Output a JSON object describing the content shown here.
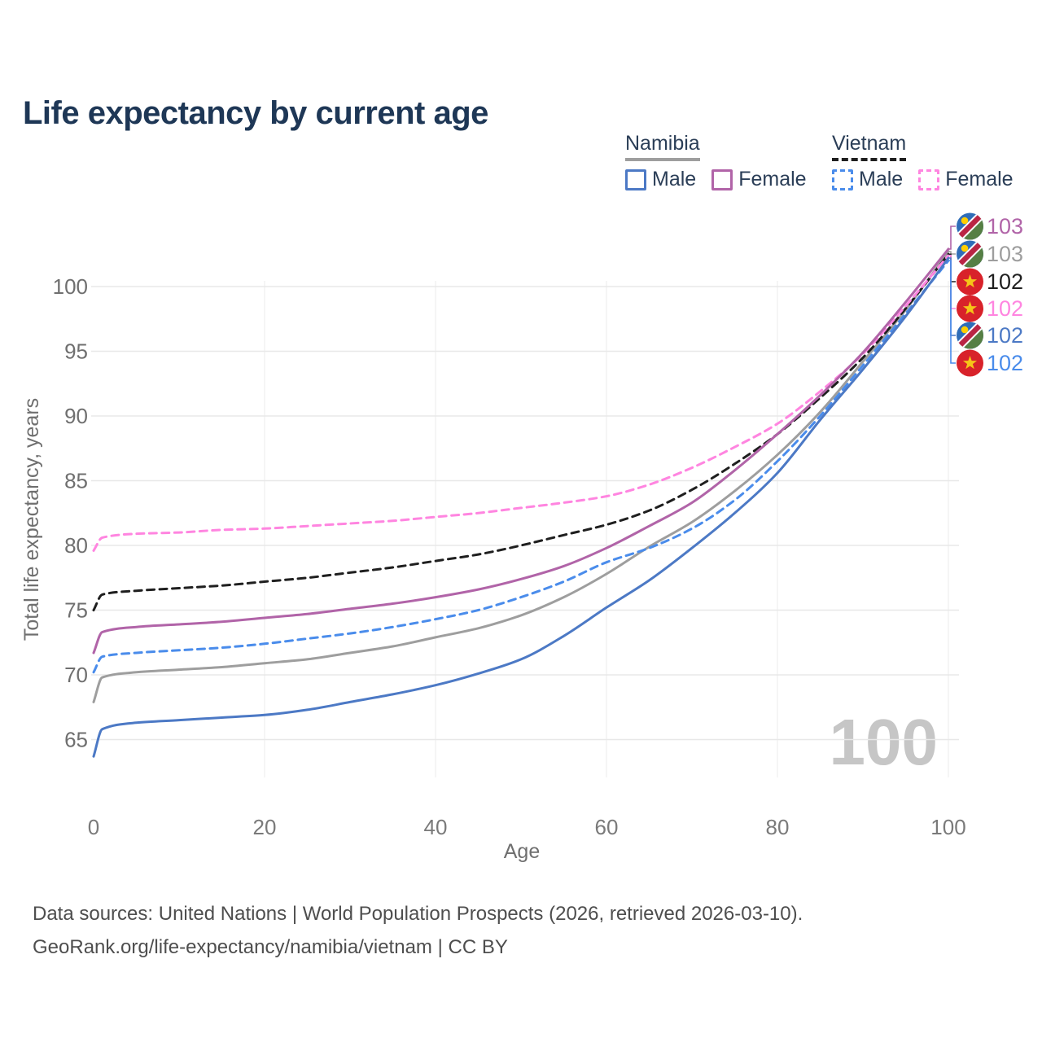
{
  "title": "Life expectancy by current age",
  "watermark": "100",
  "footer": {
    "line1": "Data sources: United Nations | World Population Prospects (2026, retrieved 2026-03-10).",
    "line2": "GeoRank.org/life-expectancy/namibia/vietnam | CC BY"
  },
  "legend": {
    "groups": [
      {
        "label": "Namibia",
        "underline_style": "solid",
        "underline_color": "#9e9e9e",
        "items": [
          {
            "label": "Male",
            "swatch_color": "#4c79c5",
            "swatch_style": "solid"
          },
          {
            "label": "Female",
            "swatch_color": "#b164a8",
            "swatch_style": "solid"
          }
        ]
      },
      {
        "label": "Vietnam",
        "underline_style": "dashed",
        "underline_color": "#1f1f1f",
        "items": [
          {
            "label": "Male",
            "swatch_color": "#4a8ceb",
            "swatch_style": "dashed"
          },
          {
            "label": "Female",
            "swatch_color": "#ff85e0",
            "swatch_style": "dashed"
          }
        ]
      }
    ]
  },
  "chart_data": {
    "type": "line",
    "title": "Life expectancy by current age",
    "xlabel": "Age",
    "ylabel": "Total life expectancy, years",
    "xlim": [
      0,
      100
    ],
    "ylim": [
      63,
      103.5
    ],
    "xticks": [
      0,
      20,
      40,
      60,
      80,
      100
    ],
    "yticks": [
      65,
      70,
      75,
      80,
      85,
      90,
      95,
      100
    ],
    "grid": true,
    "legend_position": "top-right",
    "x": [
      0,
      1,
      5,
      10,
      15,
      20,
      25,
      30,
      35,
      40,
      45,
      50,
      55,
      60,
      65,
      70,
      75,
      80,
      85,
      90,
      95,
      100
    ],
    "series": [
      {
        "name": "Namibia Female",
        "country": "Namibia",
        "sex": "Female",
        "color": "#b164a8",
        "dashed": false,
        "flag": "namibia",
        "end_label": "103",
        "values": [
          71.7,
          73.3,
          73.7,
          73.9,
          74.1,
          74.4,
          74.7,
          75.1,
          75.5,
          76.0,
          76.6,
          77.4,
          78.4,
          79.8,
          81.5,
          83.3,
          85.8,
          88.6,
          91.6,
          94.9,
          98.8,
          102.9
        ]
      },
      {
        "name": "Namibia Total",
        "country": "Namibia",
        "sex": "Both",
        "color": "#9e9e9e",
        "dashed": false,
        "flag": "namibia",
        "end_label": "103",
        "values": [
          67.9,
          69.8,
          70.2,
          70.4,
          70.6,
          70.9,
          71.2,
          71.7,
          72.2,
          72.9,
          73.6,
          74.6,
          76.0,
          77.8,
          79.9,
          81.8,
          84.2,
          87.0,
          90.3,
          94.2,
          98.2,
          102.7
        ]
      },
      {
        "name": "Vietnam Total",
        "country": "Vietnam",
        "sex": "Both",
        "color": "#1f1f1f",
        "dashed": true,
        "flag": "vietnam",
        "end_label": "102",
        "values": [
          75.0,
          76.2,
          76.5,
          76.7,
          76.9,
          77.2,
          77.5,
          77.9,
          78.3,
          78.8,
          79.3,
          80.0,
          80.8,
          81.6,
          82.7,
          84.3,
          86.3,
          88.6,
          91.4,
          94.5,
          98.3,
          102.5
        ]
      },
      {
        "name": "Vietnam Female",
        "country": "Vietnam",
        "sex": "Female",
        "color": "#ff85e0",
        "dashed": true,
        "flag": "vietnam",
        "end_label": "102",
        "values": [
          79.6,
          80.6,
          80.9,
          81.0,
          81.2,
          81.3,
          81.5,
          81.7,
          81.9,
          82.2,
          82.5,
          82.9,
          83.3,
          83.8,
          84.7,
          86.0,
          87.6,
          89.4,
          91.9,
          94.8,
          98.5,
          102.4
        ]
      },
      {
        "name": "Namibia Male",
        "country": "Namibia",
        "sex": "Male",
        "color": "#4c79c5",
        "dashed": false,
        "flag": "namibia",
        "end_label": "102",
        "values": [
          63.7,
          65.8,
          66.3,
          66.5,
          66.7,
          66.9,
          67.3,
          67.9,
          68.5,
          69.2,
          70.1,
          71.2,
          73.0,
          75.2,
          77.3,
          79.8,
          82.5,
          85.6,
          89.7,
          93.6,
          97.7,
          102.2
        ]
      },
      {
        "name": "Vietnam Male",
        "country": "Vietnam",
        "sex": "Male",
        "color": "#4a8ceb",
        "dashed": true,
        "flag": "vietnam",
        "end_label": "102",
        "values": [
          70.2,
          71.4,
          71.7,
          71.9,
          72.1,
          72.4,
          72.8,
          73.2,
          73.7,
          74.3,
          75.0,
          76.0,
          77.2,
          78.7,
          79.8,
          81.3,
          83.5,
          86.5,
          90.0,
          93.9,
          97.9,
          102.0
        ]
      }
    ]
  }
}
